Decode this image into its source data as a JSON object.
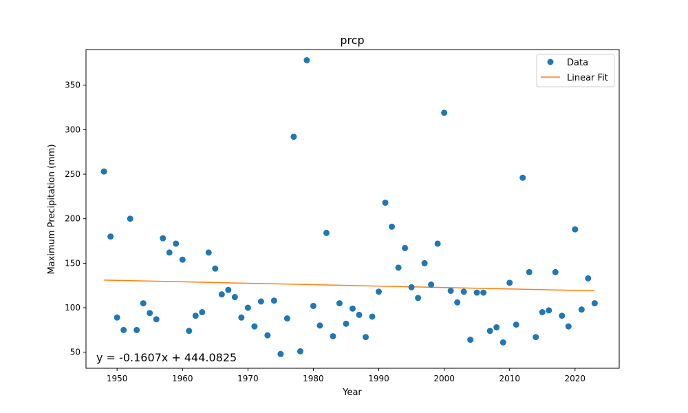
{
  "chart_data": {
    "type": "scatter",
    "title": "prcp",
    "xlabel": "Year",
    "ylabel": "Maximum Precipitation (mm)",
    "xlim": [
      1945.25,
      2026.75
    ],
    "ylim": [
      32,
      390
    ],
    "xticks": [
      1950,
      1960,
      1970,
      1980,
      1990,
      2000,
      2010,
      2020
    ],
    "yticks": [
      50,
      100,
      150,
      200,
      250,
      300,
      350
    ],
    "legend": {
      "placement": "top-right",
      "entries": [
        "Data",
        "Linear Fit"
      ]
    },
    "grid": false,
    "colors": {
      "data": "#1f77b4",
      "fit": "#ff7f0e"
    },
    "series": [
      {
        "name": "Data",
        "kind": "scatter",
        "x": [
          1948,
          1949,
          1950,
          1951,
          1952,
          1953,
          1954,
          1955,
          1956,
          1957,
          1958,
          1959,
          1960,
          1961,
          1962,
          1963,
          1964,
          1965,
          1966,
          1967,
          1968,
          1969,
          1970,
          1971,
          1972,
          1973,
          1974,
          1975,
          1976,
          1977,
          1978,
          1979,
          1980,
          1981,
          1982,
          1983,
          1984,
          1985,
          1986,
          1987,
          1988,
          1989,
          1990,
          1991,
          1992,
          1993,
          1994,
          1995,
          1996,
          1997,
          1998,
          1999,
          2000,
          2001,
          2002,
          2003,
          2004,
          2005,
          2006,
          2007,
          2008,
          2009,
          2010,
          2011,
          2012,
          2013,
          2014,
          2015,
          2016,
          2017,
          2018,
          2019,
          2020,
          2021,
          2022,
          2023
        ],
        "y": [
          253,
          180,
          89,
          75,
          200,
          75,
          105,
          94,
          87,
          178,
          162,
          172,
          154,
          74,
          91,
          95,
          162,
          144,
          115,
          120,
          112,
          89,
          100,
          79,
          107,
          69,
          108,
          48,
          88,
          292,
          51,
          378,
          102,
          80,
          184,
          68,
          105,
          82,
          99,
          92,
          67,
          90,
          118,
          218,
          191,
          145,
          167,
          123,
          111,
          150,
          126,
          172,
          319,
          119,
          106,
          118,
          64,
          117,
          117,
          74,
          78,
          61,
          128,
          81,
          246,
          140,
          67,
          95,
          97,
          140,
          91,
          79,
          188,
          98,
          133,
          105
        ]
      },
      {
        "name": "Linear Fit",
        "kind": "line",
        "slope": -0.1607,
        "intercept": 444.0825,
        "x": [
          1948,
          2023
        ]
      }
    ],
    "annotation": "y = -0.1607x + 444.0825"
  }
}
